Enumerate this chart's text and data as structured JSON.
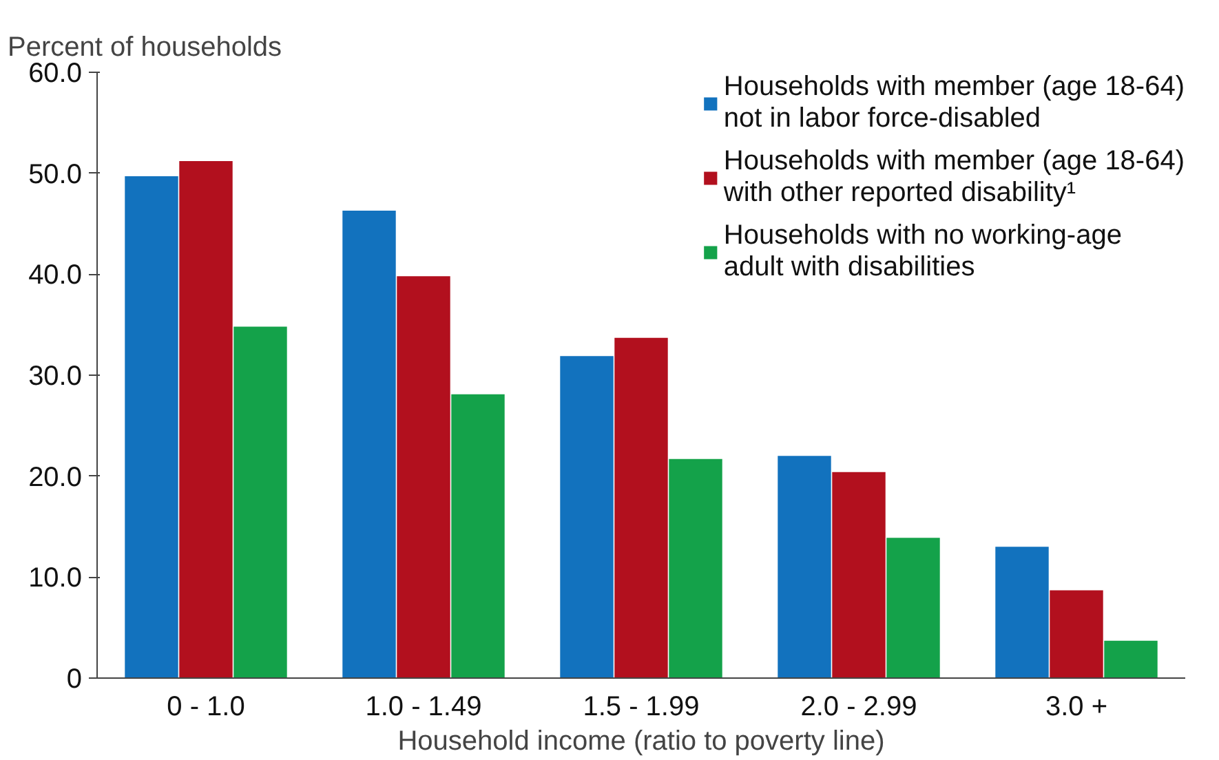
{
  "chart_data": {
    "type": "bar",
    "ylabel": "Percent of households",
    "xlabel": "Household income (ratio to poverty line)",
    "categories": [
      "0 - 1.0",
      "1.0 - 1.49",
      "1.5 - 1.99",
      "2.0 - 2.99",
      "3.0 +"
    ],
    "series": [
      {
        "name": "Households with member (age 18-64) not in labor force-disabled",
        "color": "#1272be",
        "values": [
          49.7,
          46.3,
          31.9,
          22.0,
          13.0
        ]
      },
      {
        "name": "Households with member (age 18-64) with other reported disability¹",
        "color": "#b2101e",
        "values": [
          51.2,
          39.8,
          33.7,
          20.4,
          8.7
        ]
      },
      {
        "name": "Households with no working-age adult with disabilities",
        "color": "#14a24a",
        "values": [
          34.8,
          28.1,
          21.7,
          13.9,
          3.7
        ]
      }
    ],
    "ylim": [
      0,
      60
    ],
    "yticks": [
      0,
      {
        "value": 10,
        "label": "10.0"
      },
      {
        "value": 20,
        "label": "20.0"
      },
      {
        "value": 30,
        "label": "30.0"
      },
      {
        "value": 40,
        "label": "40.0"
      },
      {
        "value": 50,
        "label": "50.0"
      },
      {
        "value": 60,
        "label": "60.0"
      }
    ],
    "grid": false,
    "legend": "top right"
  }
}
